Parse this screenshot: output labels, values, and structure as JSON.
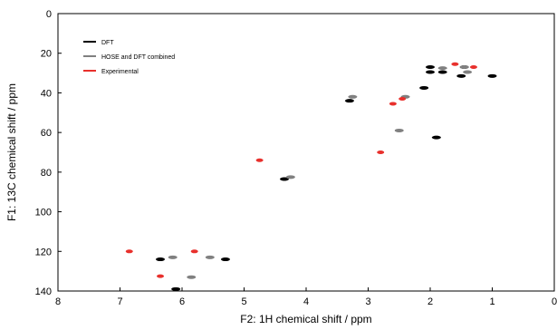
{
  "chart_data": {
    "type": "scatter",
    "xlabel": "F2: 1H chemical shift / ppm",
    "ylabel": "F1: 13C chemical shift / ppm",
    "xlim": [
      8,
      0
    ],
    "ylim": [
      0,
      140
    ],
    "x_ticks": [
      "8",
      "7",
      "6",
      "5",
      "4",
      "3",
      "2",
      "1",
      "0"
    ],
    "y_ticks": [
      "0",
      "20",
      "40",
      "60",
      "80",
      "100",
      "120",
      "140"
    ],
    "x_tick_values": [
      8,
      7,
      6,
      5,
      4,
      3,
      2,
      1,
      0
    ],
    "y_tick_values": [
      0,
      20,
      40,
      60,
      80,
      100,
      120,
      140
    ],
    "legend_position": "top-left",
    "grid": false,
    "series": [
      {
        "name": "DFT",
        "color": "#000000",
        "points": [
          {
            "x": 6.1,
            "y": 139
          },
          {
            "x": 6.35,
            "y": 124
          },
          {
            "x": 5.3,
            "y": 124
          },
          {
            "x": 4.35,
            "y": 83.5
          },
          {
            "x": 3.3,
            "y": 44
          },
          {
            "x": 1.9,
            "y": 62.5
          },
          {
            "x": 2.1,
            "y": 37.5
          },
          {
            "x": 2.0,
            "y": 29.5
          },
          {
            "x": 1.8,
            "y": 29.5
          },
          {
            "x": 2.0,
            "y": 27
          },
          {
            "x": 1.5,
            "y": 31.5
          },
          {
            "x": 1.45,
            "y": 27
          },
          {
            "x": 1.0,
            "y": 31.5
          }
        ]
      },
      {
        "name": "HOSE and DFT combined",
        "color": "#808080",
        "points": [
          {
            "x": 6.15,
            "y": 123
          },
          {
            "x": 5.85,
            "y": 133
          },
          {
            "x": 5.55,
            "y": 123
          },
          {
            "x": 4.25,
            "y": 82.5
          },
          {
            "x": 3.25,
            "y": 42
          },
          {
            "x": 2.5,
            "y": 59
          },
          {
            "x": 2.4,
            "y": 42
          },
          {
            "x": 1.8,
            "y": 27.5
          },
          {
            "x": 1.4,
            "y": 29.5
          },
          {
            "x": 1.45,
            "y": 27
          }
        ]
      },
      {
        "name": "Experimental",
        "color": "#e8302c",
        "points": [
          {
            "x": 6.85,
            "y": 120
          },
          {
            "x": 6.35,
            "y": 132.5
          },
          {
            "x": 5.8,
            "y": 120
          },
          {
            "x": 4.75,
            "y": 74
          },
          {
            "x": 2.8,
            "y": 70
          },
          {
            "x": 2.6,
            "y": 45.5
          },
          {
            "x": 2.45,
            "y": 43
          },
          {
            "x": 1.6,
            "y": 25.5
          },
          {
            "x": 1.3,
            "y": 27
          }
        ]
      }
    ]
  }
}
